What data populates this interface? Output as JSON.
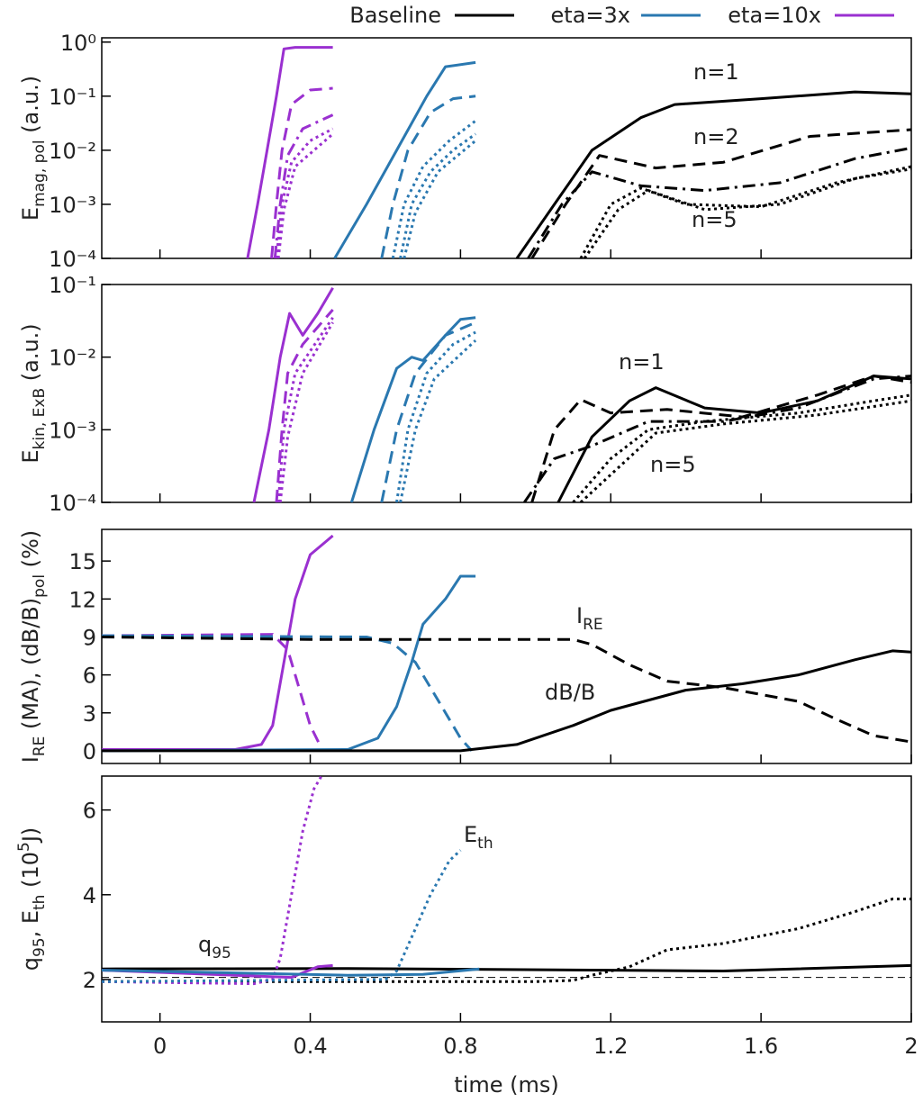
{
  "chart_data": [
    {
      "type": "line",
      "yscale": "log",
      "xlim": [
        -0.155,
        2
      ],
      "xticks": [
        0,
        0.4,
        0.8,
        1.2,
        1.6,
        2
      ],
      "ylim": [
        0.0001,
        1.2
      ],
      "yticks": [
        {
          "value": 1,
          "label": "10⁰"
        },
        {
          "value": 0.1,
          "label": "10⁻¹"
        },
        {
          "value": 0.01,
          "label": "10⁻²"
        },
        {
          "value": 0.001,
          "label": "10⁻³"
        },
        {
          "value": 0.0001,
          "label": "10⁻⁴"
        }
      ],
      "ylabel": [
        {
          "text": "E"
        },
        {
          "text": "mag, pol",
          "script": "sub"
        },
        {
          "text": " (a.u.)"
        }
      ],
      "legend": [
        {
          "name": "Baseline",
          "color": "#000000"
        },
        {
          "name": "eta=3x",
          "color": "#2a78b0"
        },
        {
          "name": "eta=10x",
          "color": "#9a30d0"
        }
      ],
      "annotations": [
        [
          {
            "text": "n=1"
          }
        ],
        [
          {
            "text": "n=2"
          }
        ],
        [
          {
            "text": "n=5"
          }
        ]
      ],
      "series": [
        {
          "color": "#9a30d0",
          "dash": "solid",
          "x": [
            0.233,
            0.26,
            0.285,
            0.31,
            0.33,
            0.36,
            0.46
          ],
          "values": [
            0.0001,
            0.001,
            0.01,
            0.1,
            0.75,
            0.8,
            0.8
          ]
        },
        {
          "color": "#9a30d0",
          "dash": "dashed",
          "x": [
            0.297,
            0.31,
            0.325,
            0.35,
            0.4,
            0.46
          ],
          "values": [
            0.0001,
            0.001,
            0.01,
            0.07,
            0.13,
            0.14
          ]
        },
        {
          "color": "#9a30d0",
          "dash": "dashdot",
          "x": [
            0.306,
            0.32,
            0.34,
            0.38,
            0.46
          ],
          "values": [
            0.0001,
            0.001,
            0.008,
            0.025,
            0.045
          ]
        },
        {
          "color": "#9a30d0",
          "dash": "dotted",
          "x": [
            0.31,
            0.325,
            0.35,
            0.4,
            0.46
          ],
          "values": [
            0.0001,
            0.001,
            0.006,
            0.015,
            0.025
          ]
        },
        {
          "color": "#9a30d0",
          "dash": "dotted",
          "x": [
            0.315,
            0.33,
            0.36,
            0.46
          ],
          "values": [
            0.0001,
            0.0008,
            0.005,
            0.02
          ]
        },
        {
          "color": "#2a78b0",
          "dash": "solid",
          "x": [
            0.465,
            0.55,
            0.63,
            0.71,
            0.76,
            0.84
          ],
          "values": [
            0.0001,
            0.001,
            0.01,
            0.1,
            0.35,
            0.42
          ]
        },
        {
          "color": "#2a78b0",
          "dash": "dashed",
          "x": [
            0.59,
            0.62,
            0.66,
            0.72,
            0.78,
            0.84
          ],
          "values": [
            0.0001,
            0.001,
            0.01,
            0.05,
            0.09,
            0.1
          ]
        },
        {
          "color": "#2a78b0",
          "dash": "dotted",
          "x": [
            0.62,
            0.65,
            0.7,
            0.77,
            0.84
          ],
          "values": [
            0.0001,
            0.001,
            0.005,
            0.015,
            0.035
          ]
        },
        {
          "color": "#2a78b0",
          "dash": "dotted",
          "x": [
            0.64,
            0.67,
            0.72,
            0.78,
            0.84
          ],
          "values": [
            0.0001,
            0.001,
            0.004,
            0.01,
            0.02
          ]
        },
        {
          "color": "#2a78b0",
          "dash": "dotted",
          "x": [
            0.65,
            0.68,
            0.74,
            0.84
          ],
          "values": [
            0.0001,
            0.0007,
            0.004,
            0.015
          ]
        },
        {
          "color": "#000000",
          "dash": "solid",
          "x": [
            0.95,
            1.05,
            1.15,
            1.28,
            1.37,
            1.6,
            1.85,
            2
          ],
          "values": [
            0.0001,
            0.001,
            0.01,
            0.04,
            0.07,
            0.09,
            0.12,
            0.11
          ]
        },
        {
          "color": "#000000",
          "dash": "dashed",
          "x": [
            0.99,
            1.08,
            1.17,
            1.32,
            1.5,
            1.73,
            2
          ],
          "values": [
            0.0001,
            0.001,
            0.008,
            0.0047,
            0.006,
            0.018,
            0.024
          ]
        },
        {
          "color": "#000000",
          "dash": "dashdot",
          "x": [
            0.98,
            1.07,
            1.15,
            1.28,
            1.45,
            1.65,
            1.85,
            2
          ],
          "values": [
            0.0001,
            0.001,
            0.004,
            0.0022,
            0.0018,
            0.0025,
            0.007,
            0.011
          ]
        },
        {
          "color": "#000000",
          "dash": "dotted",
          "x": [
            1.12,
            1.2,
            1.28,
            1.4,
            1.6,
            1.8,
            2
          ],
          "values": [
            0.0001,
            0.001,
            0.002,
            0.001,
            0.0009,
            0.0025,
            0.005
          ]
        },
        {
          "color": "#000000",
          "dash": "dotted",
          "x": [
            1.13,
            1.22,
            1.3,
            1.45,
            1.65,
            1.85,
            2
          ],
          "values": [
            0.0001,
            0.0008,
            0.0018,
            0.0008,
            0.001,
            0.003,
            0.0045
          ]
        }
      ]
    },
    {
      "type": "line",
      "yscale": "log",
      "xlim": [
        -0.155,
        2
      ],
      "xticks": [
        0,
        0.4,
        0.8,
        1.2,
        1.6,
        2
      ],
      "ylim": [
        0.0001,
        0.1
      ],
      "yticks": [
        {
          "value": 0.1,
          "label": "10⁻¹"
        },
        {
          "value": 0.01,
          "label": "10⁻²"
        },
        {
          "value": 0.001,
          "label": "10⁻³"
        },
        {
          "value": 0.0001,
          "label": "10⁻⁴"
        }
      ],
      "ylabel": [
        {
          "text": "E"
        },
        {
          "text": "kin, ExB",
          "script": "sub"
        },
        {
          "text": " (a.u.)"
        }
      ],
      "annotations": [
        [
          {
            "text": "n=1"
          }
        ],
        [
          {
            "text": "n=5"
          }
        ]
      ],
      "series": [
        {
          "color": "#9a30d0",
          "dash": "solid",
          "x": [
            0.25,
            0.29,
            0.32,
            0.345,
            0.38,
            0.42,
            0.46
          ],
          "values": [
            0.0001,
            0.001,
            0.01,
            0.04,
            0.02,
            0.04,
            0.09
          ]
        },
        {
          "color": "#9a30d0",
          "dash": "dashed",
          "x": [
            0.31,
            0.325,
            0.34,
            0.38,
            0.46
          ],
          "values": [
            0.0001,
            0.001,
            0.006,
            0.015,
            0.045
          ]
        },
        {
          "color": "#9a30d0",
          "dash": "dotted",
          "x": [
            0.315,
            0.33,
            0.36,
            0.46
          ],
          "values": [
            0.0001,
            0.001,
            0.006,
            0.035
          ]
        },
        {
          "color": "#9a30d0",
          "dash": "dotted",
          "x": [
            0.32,
            0.34,
            0.38,
            0.46
          ],
          "values": [
            0.0001,
            0.0008,
            0.006,
            0.03
          ]
        },
        {
          "color": "#2a78b0",
          "dash": "solid",
          "x": [
            0.51,
            0.57,
            0.63,
            0.67,
            0.7,
            0.76,
            0.8,
            0.84
          ],
          "values": [
            0.0001,
            0.001,
            0.007,
            0.01,
            0.009,
            0.02,
            0.033,
            0.035
          ]
        },
        {
          "color": "#2a78b0",
          "dash": "dashed",
          "x": [
            0.59,
            0.63,
            0.68,
            0.76,
            0.84
          ],
          "values": [
            0.0001,
            0.001,
            0.006,
            0.02,
            0.03
          ]
        },
        {
          "color": "#2a78b0",
          "dash": "dotted",
          "x": [
            0.63,
            0.66,
            0.71,
            0.78,
            0.84
          ],
          "values": [
            0.0001,
            0.001,
            0.006,
            0.015,
            0.022
          ]
        },
        {
          "color": "#2a78b0",
          "dash": "dotted",
          "x": [
            0.64,
            0.68,
            0.73,
            0.84
          ],
          "values": [
            0.0001,
            0.001,
            0.005,
            0.017
          ]
        },
        {
          "color": "#000000",
          "dash": "solid",
          "x": [
            1.06,
            1.15,
            1.25,
            1.32,
            1.45,
            1.6,
            1.75,
            1.9,
            2
          ],
          "values": [
            0.0001,
            0.0008,
            0.0025,
            0.0038,
            0.002,
            0.0017,
            0.0025,
            0.0055,
            0.005
          ]
        },
        {
          "color": "#000000",
          "dash": "dashed",
          "x": [
            0.99,
            1.05,
            1.12,
            1.2,
            1.35,
            1.55,
            1.75,
            1.9,
            2
          ],
          "values": [
            0.0001,
            0.001,
            0.0026,
            0.0017,
            0.0019,
            0.0015,
            0.003,
            0.0055,
            0.0045
          ]
        },
        {
          "color": "#000000",
          "dash": "dashdot",
          "x": [
            0.97,
            1.05,
            1.15,
            1.3,
            1.5,
            1.7,
            1.9,
            2
          ],
          "values": [
            0.0001,
            0.0004,
            0.0006,
            0.0013,
            0.0013,
            0.002,
            0.005,
            0.0055
          ]
        },
        {
          "color": "#000000",
          "dash": "dotted",
          "x": [
            1.1,
            1.2,
            1.3,
            1.45,
            1.7,
            1.9,
            2
          ],
          "values": [
            0.0001,
            0.0004,
            0.001,
            0.0013,
            0.0017,
            0.0025,
            0.003
          ]
        },
        {
          "color": "#000000",
          "dash": "dotted",
          "x": [
            1.12,
            1.22,
            1.32,
            1.5,
            1.75,
            2
          ],
          "values": [
            0.0001,
            0.0003,
            0.0009,
            0.0012,
            0.0016,
            0.0025
          ]
        }
      ]
    },
    {
      "type": "line",
      "yscale": "linear",
      "xlim": [
        -0.155,
        2
      ],
      "xticks": [
        0,
        0.4,
        0.8,
        1.2,
        1.6,
        2
      ],
      "ylim": [
        -1,
        17.5
      ],
      "yticks": [
        0,
        3,
        6,
        9,
        12,
        15
      ],
      "ylabel": [
        {
          "text": "I"
        },
        {
          "text": "RE",
          "script": "sub"
        },
        {
          "text": " (MA), (dB/B)"
        },
        {
          "text": "pol",
          "script": "sub"
        },
        {
          "text": " (%)"
        }
      ],
      "annotations": [
        [
          {
            "text": "I"
          },
          {
            "text": "RE",
            "script": "sub"
          }
        ],
        [
          {
            "text": "dB/B"
          }
        ]
      ],
      "series": [
        {
          "color": "#9a30d0",
          "dash": "solid",
          "x": [
            -0.155,
            0.2,
            0.27,
            0.3,
            0.33,
            0.36,
            0.4,
            0.44,
            0.46
          ],
          "values": [
            0.1,
            0.1,
            0.5,
            2,
            7,
            12,
            15.5,
            16.5,
            17
          ]
        },
        {
          "color": "#9a30d0",
          "dash": "dashed",
          "x": [
            -0.155,
            0.3,
            0.34,
            0.37,
            0.4,
            0.43
          ],
          "values": [
            9.1,
            9.2,
            8,
            5,
            2,
            0.2
          ]
        },
        {
          "color": "#2a78b0",
          "dash": "solid",
          "x": [
            -0.155,
            0.5,
            0.58,
            0.63,
            0.67,
            0.7,
            0.76,
            0.8,
            0.84
          ],
          "values": [
            0,
            0.1,
            1,
            3.5,
            7,
            10,
            12,
            13.8,
            13.8
          ]
        },
        {
          "color": "#2a78b0",
          "dash": "dashed",
          "x": [
            -0.155,
            0.55,
            0.62,
            0.68,
            0.74,
            0.8,
            0.83
          ],
          "values": [
            9.1,
            9,
            8.5,
            7,
            4,
            1,
            0
          ]
        },
        {
          "color": "#000000",
          "dash": "solid",
          "x": [
            -0.155,
            0.8,
            0.95,
            1.1,
            1.2,
            1.4,
            1.55,
            1.7,
            1.85,
            1.95,
            2
          ],
          "values": [
            0,
            0,
            0.5,
            2,
            3.2,
            4.8,
            5.3,
            6,
            7.2,
            7.9,
            7.8
          ]
        },
        {
          "color": "#000000",
          "dash": "dashed",
          "x": [
            -0.155,
            0.4,
            1,
            1.1,
            1.15,
            1.25,
            1.35,
            1.5,
            1.7,
            1.8,
            1.9,
            2
          ],
          "values": [
            9,
            8.8,
            8.8,
            8.8,
            8.4,
            6.8,
            5.5,
            5,
            3.9,
            2.5,
            1.2,
            0.7
          ]
        }
      ]
    },
    {
      "type": "line",
      "yscale": "linear",
      "xlim": [
        -0.155,
        2
      ],
      "xticks": [
        0,
        0.4,
        0.8,
        1.2,
        1.6,
        2
      ],
      "xtick_labels": true,
      "ylim": [
        1,
        6.8
      ],
      "yticks": [
        2,
        4,
        6
      ],
      "xlabel": "time (ms)",
      "ylabel": [
        {
          "text": "q"
        },
        {
          "text": "95",
          "script": "sub"
        },
        {
          "text": ", E"
        },
        {
          "text": "th",
          "script": "sub"
        },
        {
          "text": " (10"
        },
        {
          "text": "5",
          "script": "sup"
        },
        {
          "text": "J)"
        }
      ],
      "annotations": [
        [
          {
            "text": "E"
          },
          {
            "text": "th",
            "script": "sub"
          }
        ],
        [
          {
            "text": "q"
          },
          {
            "text": "95",
            "script": "sub"
          }
        ]
      ],
      "series": [
        {
          "color": "#000000",
          "dash": "thin-dashed",
          "x": [
            -0.155,
            2
          ],
          "values": [
            2.05,
            2.05
          ]
        },
        {
          "color": "#000000",
          "dash": "solid",
          "x": [
            -0.155,
            0.5,
            1.2,
            1.5,
            2
          ],
          "values": [
            2.25,
            2.26,
            2.22,
            2.2,
            2.33
          ]
        },
        {
          "color": "#000000",
          "dash": "dotted",
          "x": [
            -0.155,
            1,
            1.1,
            1.15,
            1.25,
            1.35,
            1.5,
            1.7,
            1.85,
            1.95,
            2
          ],
          "values": [
            1.95,
            1.95,
            1.98,
            2.1,
            2.3,
            2.7,
            2.85,
            3.2,
            3.6,
            3.9,
            3.9
          ]
        },
        {
          "color": "#9a30d0",
          "dash": "solid",
          "x": [
            -0.155,
            0.2,
            0.35,
            0.42,
            0.46
          ],
          "values": [
            2.22,
            2.1,
            2.05,
            2.3,
            2.33
          ]
        },
        {
          "color": "#9a30d0",
          "dash": "dotted",
          "x": [
            -0.155,
            0.25,
            0.3,
            0.32,
            0.35,
            0.38,
            0.41,
            0.43
          ],
          "values": [
            1.95,
            1.9,
            2,
            2.5,
            4,
            5.5,
            6.5,
            6.8
          ]
        },
        {
          "color": "#2a78b0",
          "dash": "solid",
          "x": [
            -0.155,
            0.5,
            0.7,
            0.85
          ],
          "values": [
            2.22,
            2.1,
            2.12,
            2.25
          ]
        },
        {
          "color": "#2a78b0",
          "dash": "dotted",
          "x": [
            -0.155,
            0.6,
            0.63,
            0.67,
            0.72,
            0.77,
            0.8
          ],
          "values": [
            1.95,
            2,
            2.2,
            3,
            4,
            4.8,
            5.05
          ]
        }
      ]
    }
  ]
}
